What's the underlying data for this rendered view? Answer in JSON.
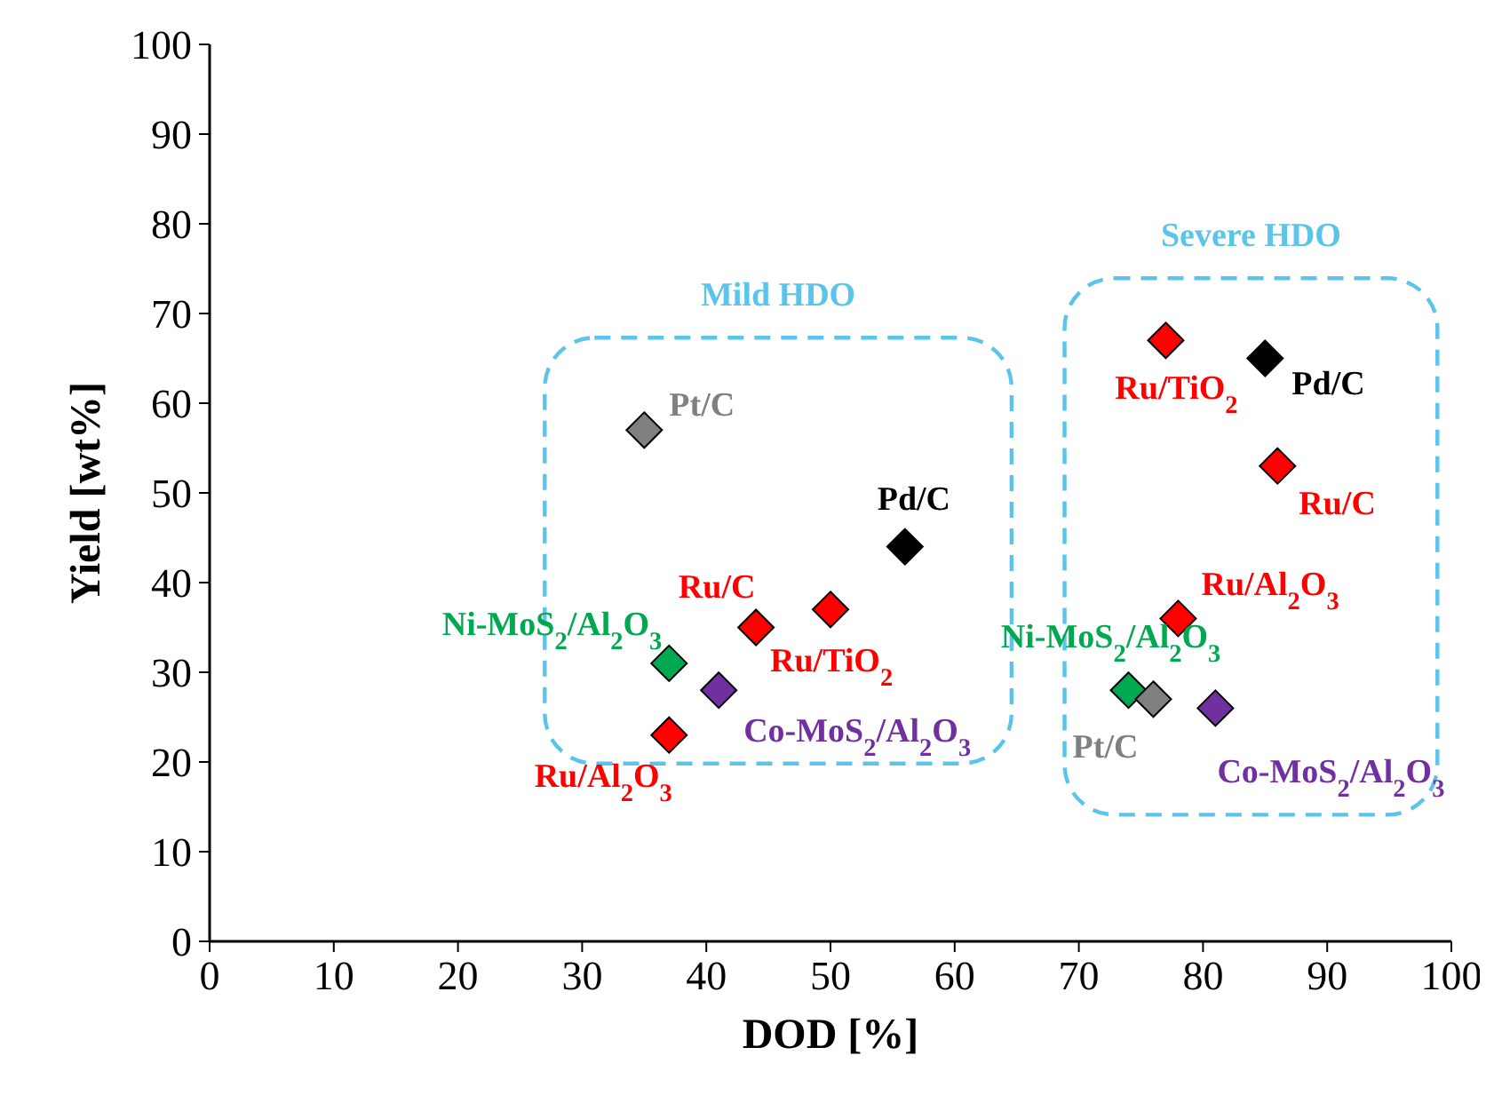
{
  "chart_data": {
    "type": "scatter",
    "xlabel": "DOD [%]",
    "ylabel": "Yield [wt%]",
    "xlim": [
      0,
      100
    ],
    "xticks": [
      0,
      10,
      20,
      30,
      40,
      50,
      60,
      70,
      80,
      90,
      100
    ],
    "ylim": [
      0,
      100
    ],
    "yticks": [
      0,
      10,
      20,
      30,
      40,
      50,
      60,
      70,
      80,
      90,
      100
    ],
    "marker": "diamond",
    "series": [
      {
        "color": "#5bc4ea",
        "x": [
          35,
          56,
          44,
          50,
          37,
          41,
          37
        ],
        "values": [
          57,
          44,
          35,
          37,
          31,
          28,
          23
        ],
        "colors": [
          "#808080",
          "#000000",
          "#ff0000",
          "#ff0000",
          "#00a850",
          "#7030a0",
          "#ff0000"
        ]
      },
      {
        "color": "#5bc4ea",
        "x": [
          77,
          85,
          86,
          78,
          74,
          76,
          81
        ],
        "values": [
          67,
          65,
          53,
          36,
          28,
          27,
          26
        ],
        "colors": [
          "#ff0000",
          "#000000",
          "#ff0000",
          "#ff0000",
          "#00a850",
          "#808080",
          "#7030a0"
        ]
      }
    ],
    "annotations": [
      {
        "text": "Pt/C",
        "x": 35,
        "y": 57
      },
      {
        "text": "Pd/C",
        "x": 56,
        "y": 44
      },
      {
        "text": "Ru/C",
        "x": 44,
        "y": 35
      },
      {
        "text": "Ru/TiO$_{2}$",
        "x": 50,
        "y": 37
      },
      {
        "text": "Ni-MoS$_{2}$/Al$_{2}$O$_{3}$",
        "x": 37,
        "y": 31
      },
      {
        "text": "Co-MoS$_{2}$/Al$_{2}$O$_{3}$",
        "x": 41,
        "y": 28
      },
      {
        "text": "Ru/Al$_{2}$O$_{3}$",
        "x": 37,
        "y": 23
      },
      {
        "text": "Ru/TiO$_{2}$",
        "x": 77,
        "y": 67
      },
      {
        "text": "Pd/C",
        "x": 85,
        "y": 65
      },
      {
        "text": "Ru/C",
        "x": 86,
        "y": 53
      },
      {
        "text": "Ru/Al$_{2}$O$_{3}$",
        "x": 78,
        "y": 36
      },
      {
        "text": "Ni-MoS$_{2}$/Al$_{2}$O$_{3}$",
        "x": 74,
        "y": 28
      },
      {
        "text": "Pt/C",
        "x": 76,
        "y": 27
      },
      {
        "text": "Co-MoS$_{2}$/Al$_{2}$O$_{3}$",
        "x": 81,
        "y": 26
      },
      "Mild HDO",
      "Severe HDO"
    ]
  }
}
